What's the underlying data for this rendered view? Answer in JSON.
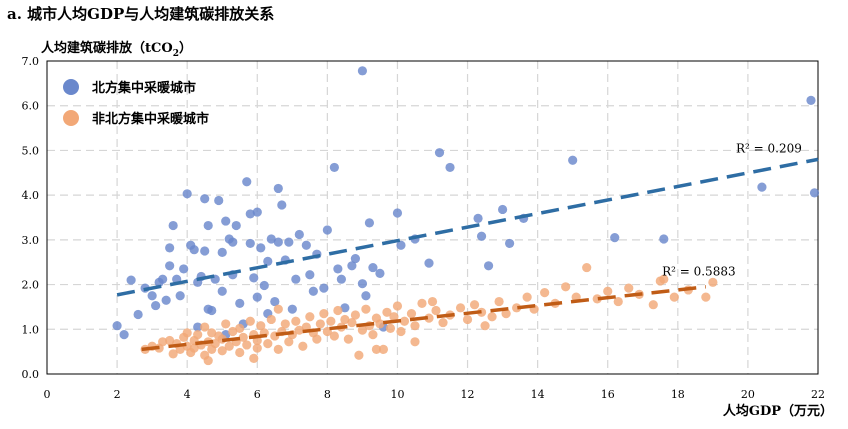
{
  "chart_data": {
    "type": "scatter",
    "title": "a. 城市人均GDP与人均建筑碳排放关系",
    "xlabel": "人均GDP（万元）",
    "ylabel": "人均建筑碳排放（tCO",
    "ylabel_sub": "2",
    "ylabel_close": "）",
    "xlim": [
      0,
      22
    ],
    "ylim": [
      0,
      7
    ],
    "xticks": [
      0,
      2,
      4,
      6,
      8,
      10,
      12,
      14,
      16,
      18,
      20,
      22
    ],
    "yticks": [
      "0.0",
      "1.0",
      "2.0",
      "3.0",
      "4.0",
      "5.0",
      "6.0",
      "7.0"
    ],
    "grid": true,
    "legend_position": "top-left",
    "series": [
      {
        "name": "北方集中采暖城市",
        "color": "#6a88cc",
        "trend": {
          "x0": 2.0,
          "y0": 1.77,
          "x1": 22.0,
          "y1": 4.8,
          "color": "#2e6da4",
          "label": "R² = 0.209"
        },
        "points": [
          [
            2.0,
            1.08
          ],
          [
            2.2,
            0.88
          ],
          [
            2.6,
            1.33
          ],
          [
            2.8,
            1.92
          ],
          [
            3.0,
            1.75
          ],
          [
            3.1,
            1.53
          ],
          [
            3.2,
            2.05
          ],
          [
            3.3,
            2.12
          ],
          [
            3.4,
            1.65
          ],
          [
            3.5,
            2.42
          ],
          [
            3.5,
            2.82
          ],
          [
            3.6,
            3.32
          ],
          [
            3.7,
            2.12
          ],
          [
            3.8,
            1.75
          ],
          [
            3.9,
            2.35
          ],
          [
            4.0,
            4.03
          ],
          [
            4.1,
            2.88
          ],
          [
            4.2,
            2.78
          ],
          [
            4.3,
            2.05
          ],
          [
            4.4,
            2.18
          ],
          [
            4.5,
            3.92
          ],
          [
            4.5,
            2.75
          ],
          [
            4.6,
            3.32
          ],
          [
            4.7,
            1.42
          ],
          [
            4.8,
            2.12
          ],
          [
            4.9,
            3.88
          ],
          [
            5.0,
            2.72
          ],
          [
            5.0,
            1.85
          ],
          [
            5.1,
            3.42
          ],
          [
            5.2,
            3.02
          ],
          [
            5.3,
            2.95
          ],
          [
            5.3,
            2.22
          ],
          [
            5.4,
            3.32
          ],
          [
            5.5,
            1.58
          ],
          [
            5.6,
            1.12
          ],
          [
            5.7,
            4.3
          ],
          [
            5.8,
            3.58
          ],
          [
            5.8,
            2.92
          ],
          [
            5.9,
            2.15
          ],
          [
            6.0,
            3.62
          ],
          [
            6.1,
            2.82
          ],
          [
            6.2,
            1.98
          ],
          [
            6.3,
            2.52
          ],
          [
            6.3,
            1.35
          ],
          [
            6.4,
            3.02
          ],
          [
            6.5,
            1.62
          ],
          [
            6.6,
            4.15
          ],
          [
            6.6,
            2.95
          ],
          [
            6.7,
            3.78
          ],
          [
            6.8,
            2.55
          ],
          [
            6.9,
            2.95
          ],
          [
            7.0,
            1.45
          ],
          [
            7.1,
            2.12
          ],
          [
            7.2,
            3.12
          ],
          [
            7.4,
            2.88
          ],
          [
            7.5,
            2.22
          ],
          [
            7.6,
            1.85
          ],
          [
            7.7,
            2.68
          ],
          [
            7.9,
            1.92
          ],
          [
            8.0,
            3.22
          ],
          [
            8.2,
            4.62
          ],
          [
            8.3,
            2.35
          ],
          [
            8.4,
            2.12
          ],
          [
            8.5,
            1.48
          ],
          [
            8.7,
            2.42
          ],
          [
            8.8,
            2.58
          ],
          [
            9.0,
            2.02
          ],
          [
            9.1,
            1.75
          ],
          [
            9.2,
            3.38
          ],
          [
            9.3,
            2.38
          ],
          [
            9.5,
            2.25
          ],
          [
            9.6,
            1.05
          ],
          [
            10.0,
            3.6
          ],
          [
            10.1,
            2.88
          ],
          [
            10.5,
            3.02
          ],
          [
            10.9,
            2.48
          ],
          [
            11.2,
            4.95
          ],
          [
            11.5,
            4.62
          ],
          [
            12.3,
            3.48
          ],
          [
            12.4,
            3.08
          ],
          [
            12.6,
            2.42
          ],
          [
            13.0,
            3.68
          ],
          [
            13.2,
            2.92
          ],
          [
            13.6,
            3.48
          ],
          [
            15.0,
            4.78
          ],
          [
            16.2,
            3.05
          ],
          [
            17.6,
            3.02
          ],
          [
            20.4,
            4.18
          ],
          [
            21.8,
            6.12
          ],
          [
            21.9,
            4.05
          ],
          [
            9.0,
            6.78
          ],
          [
            4.3,
            1.05
          ],
          [
            4.6,
            1.45
          ],
          [
            5.1,
            0.88
          ],
          [
            6.0,
            1.72
          ],
          [
            2.4,
            2.1
          ]
        ]
      },
      {
        "name": "非北方集中采暖城市",
        "color": "#f2a877",
        "trend": {
          "x0": 2.7,
          "y0": 0.55,
          "x1": 18.8,
          "y1": 1.95,
          "color": "#c05c16",
          "label": "R² = 0.5883"
        },
        "points": [
          [
            2.8,
            0.55
          ],
          [
            3.0,
            0.62
          ],
          [
            3.2,
            0.58
          ],
          [
            3.3,
            0.72
          ],
          [
            3.5,
            0.75
          ],
          [
            3.6,
            0.45
          ],
          [
            3.7,
            0.68
          ],
          [
            3.8,
            0.55
          ],
          [
            3.9,
            0.82
          ],
          [
            4.0,
            0.62
          ],
          [
            4.0,
            0.92
          ],
          [
            4.1,
            0.48
          ],
          [
            4.2,
            0.75
          ],
          [
            4.2,
            0.58
          ],
          [
            4.3,
            0.88
          ],
          [
            4.4,
            0.65
          ],
          [
            4.5,
            1.05
          ],
          [
            4.5,
            0.42
          ],
          [
            4.6,
            0.72
          ],
          [
            4.7,
            0.55
          ],
          [
            4.7,
            0.92
          ],
          [
            4.8,
            0.68
          ],
          [
            4.9,
            0.85
          ],
          [
            5.0,
            0.52
          ],
          [
            5.0,
            0.78
          ],
          [
            5.1,
            1.12
          ],
          [
            5.2,
            0.62
          ],
          [
            5.3,
            0.95
          ],
          [
            5.4,
            0.72
          ],
          [
            5.5,
            0.48
          ],
          [
            5.5,
            1.02
          ],
          [
            5.6,
            0.82
          ],
          [
            5.7,
            0.65
          ],
          [
            5.8,
            1.18
          ],
          [
            5.9,
            0.88
          ],
          [
            6.0,
            0.58
          ],
          [
            6.0,
            0.75
          ],
          [
            6.1,
            1.08
          ],
          [
            6.2,
            0.92
          ],
          [
            6.3,
            0.68
          ],
          [
            6.4,
            1.22
          ],
          [
            6.5,
            0.85
          ],
          [
            6.6,
            0.55
          ],
          [
            6.7,
            0.95
          ],
          [
            6.8,
            1.12
          ],
          [
            6.9,
            0.72
          ],
          [
            7.0,
            0.88
          ],
          [
            7.1,
            1.18
          ],
          [
            7.2,
            0.98
          ],
          [
            7.3,
            0.62
          ],
          [
            7.4,
            1.05
          ],
          [
            7.5,
            1.28
          ],
          [
            7.6,
            0.92
          ],
          [
            7.7,
            0.78
          ],
          [
            7.8,
            1.12
          ],
          [
            7.9,
            1.35
          ],
          [
            8.0,
            0.95
          ],
          [
            8.1,
            1.18
          ],
          [
            8.2,
            0.85
          ],
          [
            8.3,
            1.42
          ],
          [
            8.4,
            1.05
          ],
          [
            8.5,
            1.22
          ],
          [
            8.6,
            0.78
          ],
          [
            8.7,
            1.15
          ],
          [
            8.8,
            1.32
          ],
          [
            9.0,
            0.98
          ],
          [
            9.1,
            1.45
          ],
          [
            9.2,
            1.08
          ],
          [
            9.3,
            0.88
          ],
          [
            9.4,
            1.25
          ],
          [
            9.5,
            1.12
          ],
          [
            9.6,
            0.55
          ],
          [
            9.7,
            1.38
          ],
          [
            9.8,
            1.02
          ],
          [
            9.9,
            1.28
          ],
          [
            10.0,
            1.52
          ],
          [
            10.1,
            0.95
          ],
          [
            10.2,
            1.18
          ],
          [
            10.4,
            1.35
          ],
          [
            10.5,
            1.08
          ],
          [
            10.7,
            1.58
          ],
          [
            10.9,
            1.25
          ],
          [
            11.1,
            1.42
          ],
          [
            11.3,
            1.15
          ],
          [
            11.5,
            1.32
          ],
          [
            11.8,
            1.48
          ],
          [
            12.0,
            1.22
          ],
          [
            12.2,
            1.55
          ],
          [
            12.4,
            1.38
          ],
          [
            12.7,
            1.28
          ],
          [
            12.9,
            1.62
          ],
          [
            13.1,
            1.35
          ],
          [
            13.4,
            1.48
          ],
          [
            13.7,
            1.72
          ],
          [
            13.9,
            1.45
          ],
          [
            14.2,
            1.82
          ],
          [
            14.5,
            1.58
          ],
          [
            14.8,
            1.95
          ],
          [
            15.1,
            1.72
          ],
          [
            15.4,
            2.38
          ],
          [
            15.7,
            1.68
          ],
          [
            16.0,
            1.85
          ],
          [
            16.3,
            1.62
          ],
          [
            16.6,
            1.92
          ],
          [
            16.9,
            1.78
          ],
          [
            17.3,
            1.55
          ],
          [
            17.6,
            2.12
          ],
          [
            17.9,
            1.72
          ],
          [
            18.3,
            1.88
          ],
          [
            18.8,
            1.72
          ],
          [
            19.0,
            2.05
          ],
          [
            17.5,
            2.08
          ],
          [
            9.4,
            0.55
          ],
          [
            10.5,
            0.72
          ],
          [
            8.9,
            0.42
          ],
          [
            5.9,
            0.35
          ],
          [
            4.6,
            0.3
          ],
          [
            12.5,
            1.08
          ],
          [
            11.0,
            1.62
          ],
          [
            6.6,
            1.45
          ]
        ]
      }
    ]
  }
}
